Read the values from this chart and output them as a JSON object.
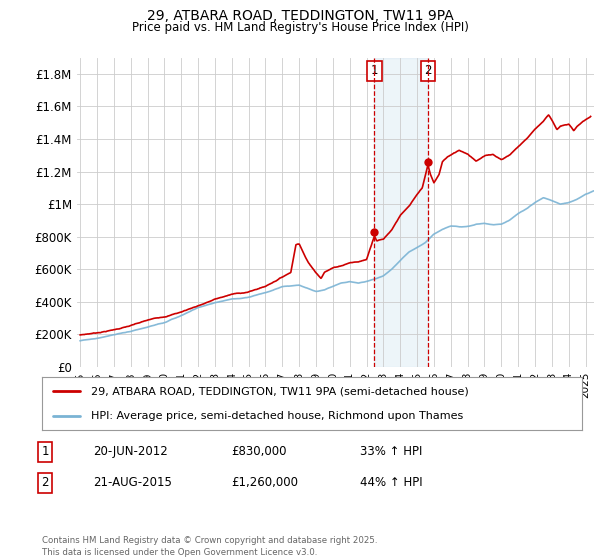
{
  "title1": "29, ATBARA ROAD, TEDDINGTON, TW11 9PA",
  "title2": "Price paid vs. HM Land Registry's House Price Index (HPI)",
  "ylabel_ticks": [
    "£0",
    "£200K",
    "£400K",
    "£600K",
    "£800K",
    "£1M",
    "£1.2M",
    "£1.4M",
    "£1.6M",
    "£1.8M"
  ],
  "ytick_values": [
    0,
    200000,
    400000,
    600000,
    800000,
    1000000,
    1200000,
    1400000,
    1600000,
    1800000
  ],
  "ylim": [
    0,
    1900000
  ],
  "xlim_start": 1994.8,
  "xlim_end": 2025.5,
  "hpi_color": "#7ab3d4",
  "price_color": "#cc0000",
  "event1_x": 2012.47,
  "event2_x": 2015.64,
  "event1_price": 830000,
  "event2_price": 1260000,
  "legend_line1": "29, ATBARA ROAD, TEDDINGTON, TW11 9PA (semi-detached house)",
  "legend_line2": "HPI: Average price, semi-detached house, Richmond upon Thames",
  "table_row1": [
    "1",
    "20-JUN-2012",
    "£830,000",
    "33% ↑ HPI"
  ],
  "table_row2": [
    "2",
    "21-AUG-2015",
    "£1,260,000",
    "44% ↑ HPI"
  ],
  "footnote": "Contains HM Land Registry data © Crown copyright and database right 2025.\nThis data is licensed under the Open Government Licence v3.0.",
  "background_color": "#ffffff",
  "grid_color": "#cccccc"
}
